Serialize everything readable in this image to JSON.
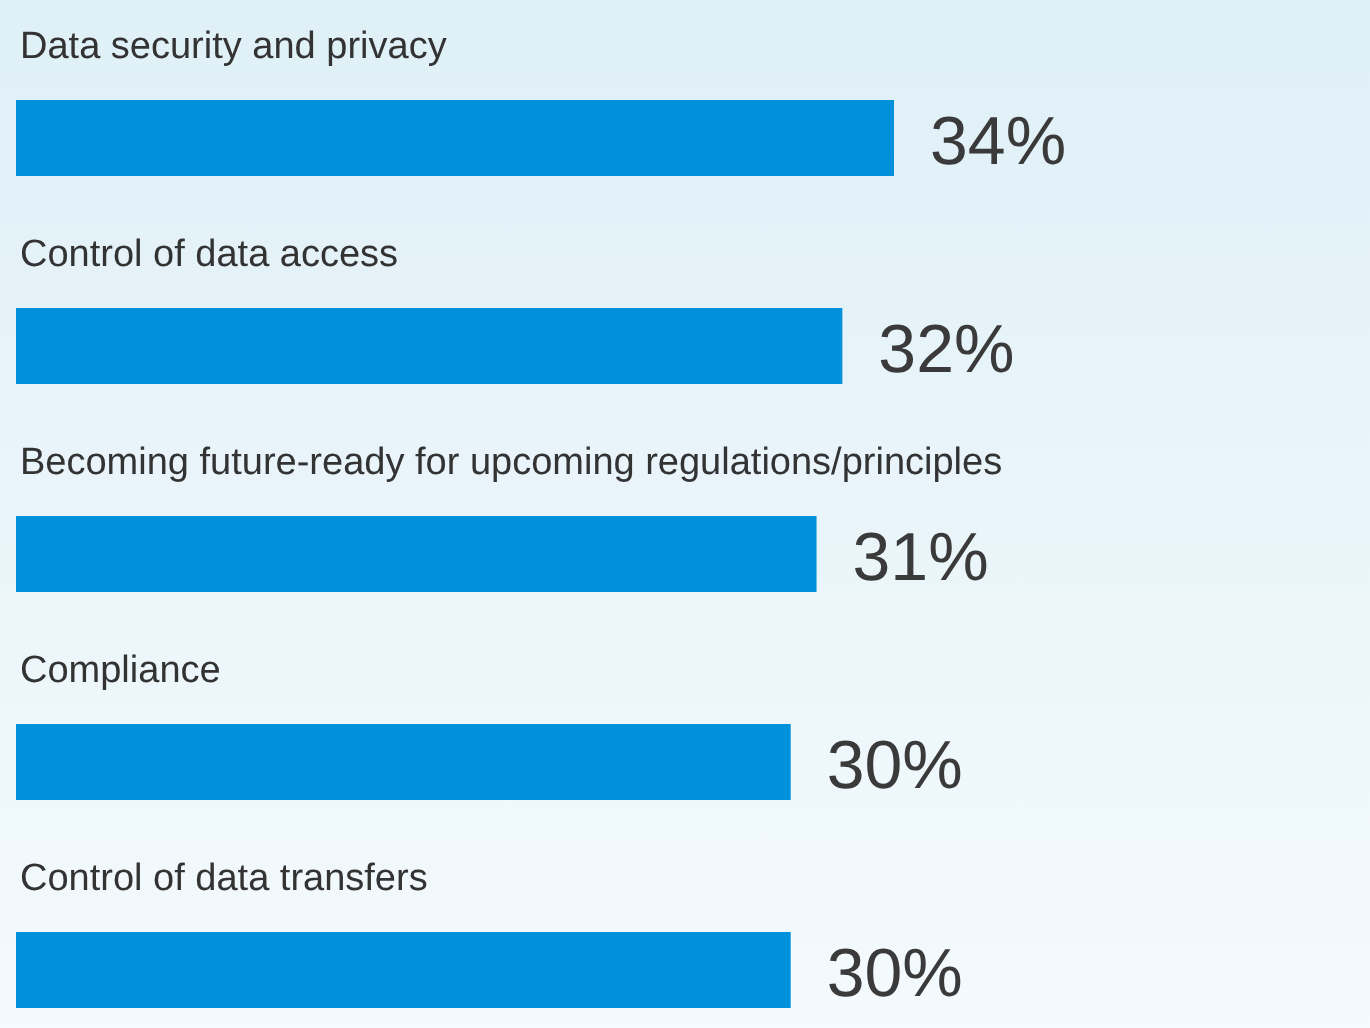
{
  "chart_data": {
    "type": "bar",
    "orientation": "horizontal",
    "categories": [
      "Data security and privacy",
      "Control of data access",
      "Becoming future-ready for upcoming regulations/principles",
      "Compliance",
      "Control of data transfers"
    ],
    "values": [
      34,
      32,
      31,
      30,
      30
    ],
    "value_labels": [
      "34%",
      "32%",
      "31%",
      "30%",
      "30%"
    ],
    "color": "#0091da"
  }
}
